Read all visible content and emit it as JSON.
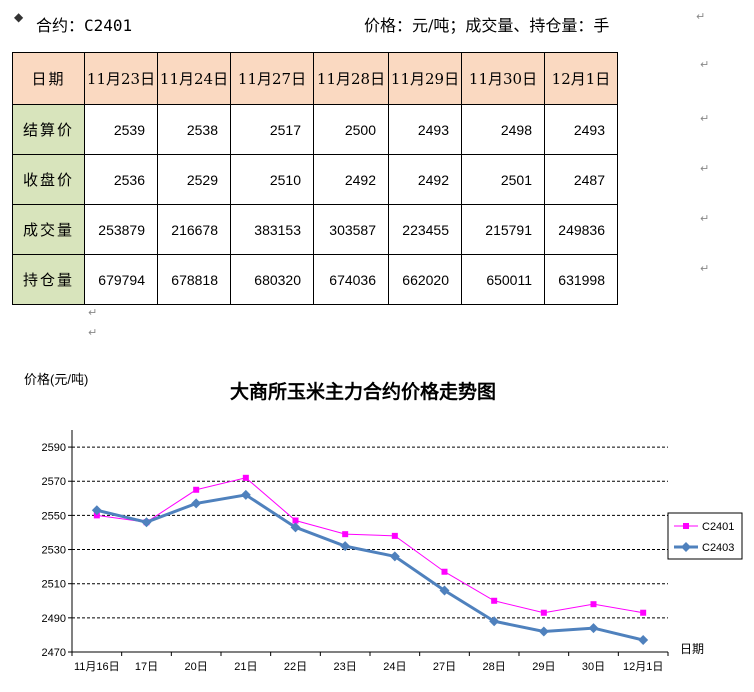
{
  "header": {
    "contract": "合约：C2401",
    "units": "价格：元/吨；成交量、持仓量：手"
  },
  "table": {
    "corner": "日期",
    "dates": [
      "11月23日",
      "11月24日",
      "11月27日",
      "11月28日",
      "11月29日",
      "11月30日",
      "12月1日"
    ],
    "rows": [
      {
        "label": "结算价",
        "values": [
          "2539",
          "2538",
          "2517",
          "2500",
          "2493",
          "2498",
          "2493"
        ]
      },
      {
        "label": "收盘价",
        "values": [
          "2536",
          "2529",
          "2510",
          "2492",
          "2492",
          "2501",
          "2487"
        ]
      },
      {
        "label": "成交量",
        "values": [
          "253879",
          "216678",
          "383153",
          "303587",
          "223455",
          "215791",
          "249836"
        ]
      },
      {
        "label": "持仓量",
        "values": [
          "679794",
          "678818",
          "680320",
          "674036",
          "662020",
          "650011",
          "631998"
        ]
      }
    ]
  },
  "chart_data": {
    "type": "line",
    "title": "大商所玉米主力合约价格走势图",
    "ylabel": "价格(元/吨)",
    "xlabel": "日期",
    "categories": [
      "11月16日",
      "17日",
      "20日",
      "21日",
      "22日",
      "23日",
      "24日",
      "27日",
      "28日",
      "29日",
      "30日",
      "12月1日"
    ],
    "yticks": [
      2470,
      2490,
      2510,
      2530,
      2550,
      2570,
      2590
    ],
    "ylim": [
      2470,
      2600
    ],
    "grid": "horizontal-dashed",
    "legend_position": "right",
    "series": [
      {
        "name": "C2401",
        "color": "#ff00ff",
        "marker": "square",
        "values": [
          2550,
          2546,
          2565,
          2572,
          2547,
          2539,
          2538,
          2517,
          2500,
          2493,
          2498,
          2493
        ]
      },
      {
        "name": "C2403",
        "color": "#4f81bd",
        "marker": "diamond",
        "values": [
          2553,
          2546,
          2557,
          2562,
          2543,
          2532,
          2526,
          2506,
          2488,
          2482,
          2484,
          2477
        ]
      }
    ]
  }
}
